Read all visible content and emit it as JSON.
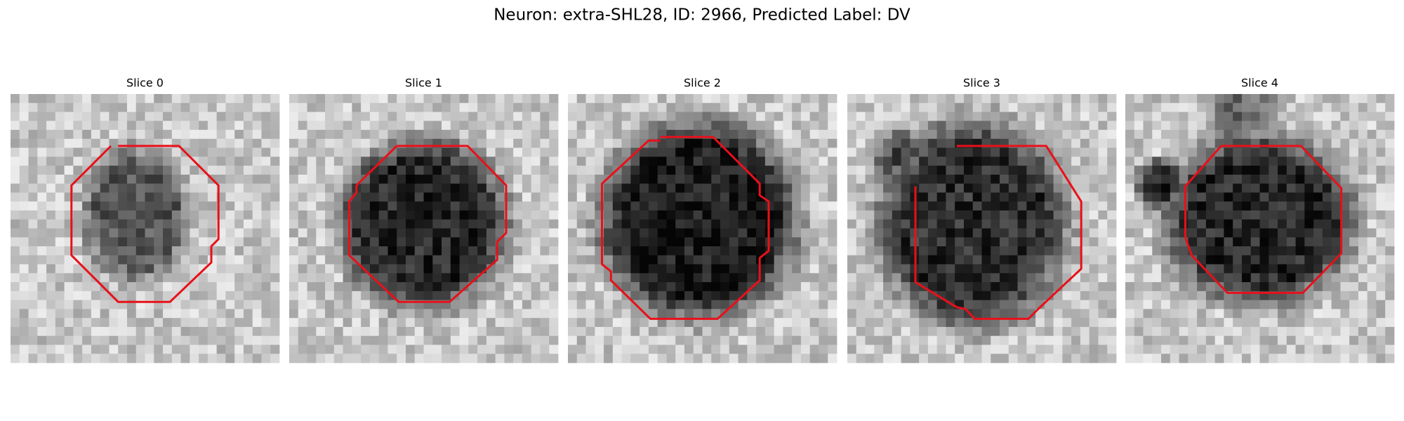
{
  "title": "Neuron: extra-SHL28, ID: 2966, Predicted Label: DV",
  "panels": [
    {
      "title": "Slice 0"
    },
    {
      "title": "Slice 1"
    },
    {
      "title": "Slice 2"
    },
    {
      "title": "Slice 3"
    },
    {
      "title": "Slice 4"
    }
  ]
}
